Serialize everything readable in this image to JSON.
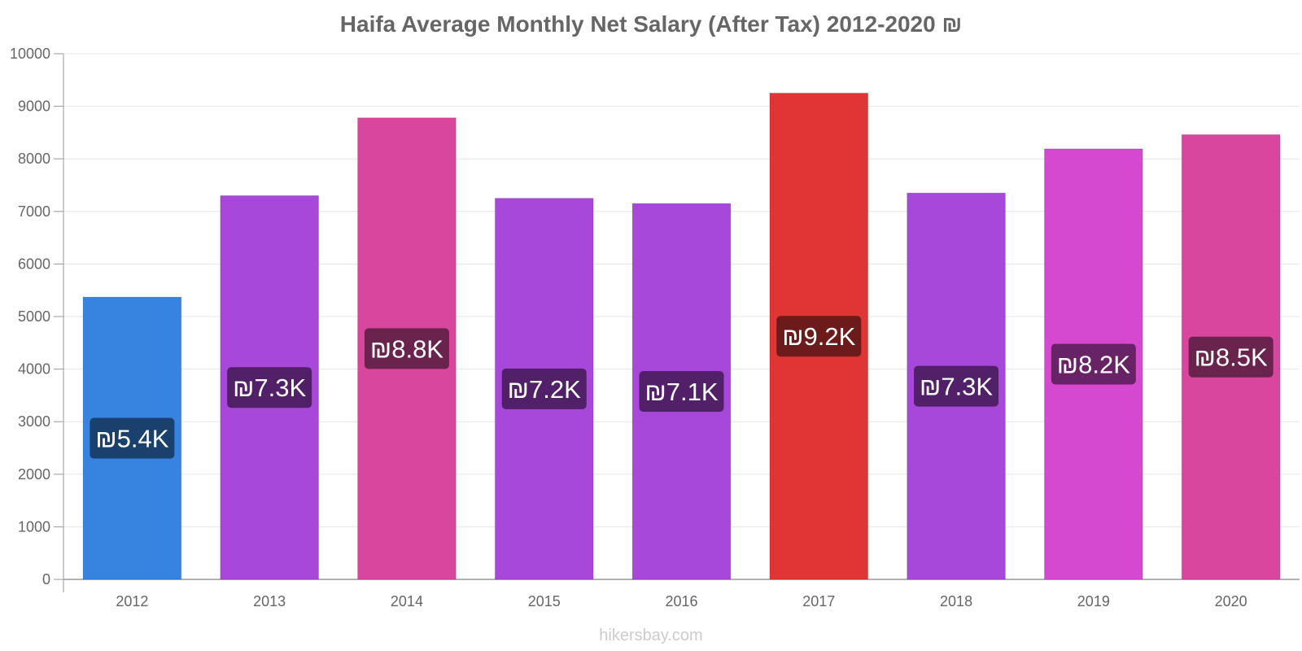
{
  "chart_data": {
    "type": "bar",
    "title": "Haifa Average Monthly Net Salary (After Tax) 2012-2020 ₪",
    "xlabel": "",
    "ylabel": "",
    "categories": [
      "2012",
      "2013",
      "2014",
      "2015",
      "2016",
      "2017",
      "2018",
      "2019",
      "2020"
    ],
    "values": [
      5370,
      7300,
      8780,
      7250,
      7150,
      9250,
      7350,
      8190,
      8460
    ],
    "data_labels": [
      "₪5.4K",
      "₪7.3K",
      "₪8.8K",
      "₪7.2K",
      "₪7.1K",
      "₪9.2K",
      "₪7.3K",
      "₪8.2K",
      "₪8.5K"
    ],
    "ylim": [
      0,
      10000
    ],
    "yticks": [
      0,
      1000,
      2000,
      3000,
      4000,
      5000,
      6000,
      7000,
      8000,
      9000,
      10000
    ],
    "grid": true,
    "legend": "none",
    "bar_colors": [
      "#3784e0",
      "#a848da",
      "#d8479d",
      "#a848da",
      "#a848da",
      "#e03535",
      "#a848da",
      "#d548d0",
      "#d8479d"
    ],
    "label_bg_colors": [
      "#1a416d",
      "#522069",
      "#69234d",
      "#522069",
      "#522069",
      "#6c1a1a",
      "#522069",
      "#682366",
      "#69234d"
    ]
  },
  "watermark": "hikersbay.com"
}
